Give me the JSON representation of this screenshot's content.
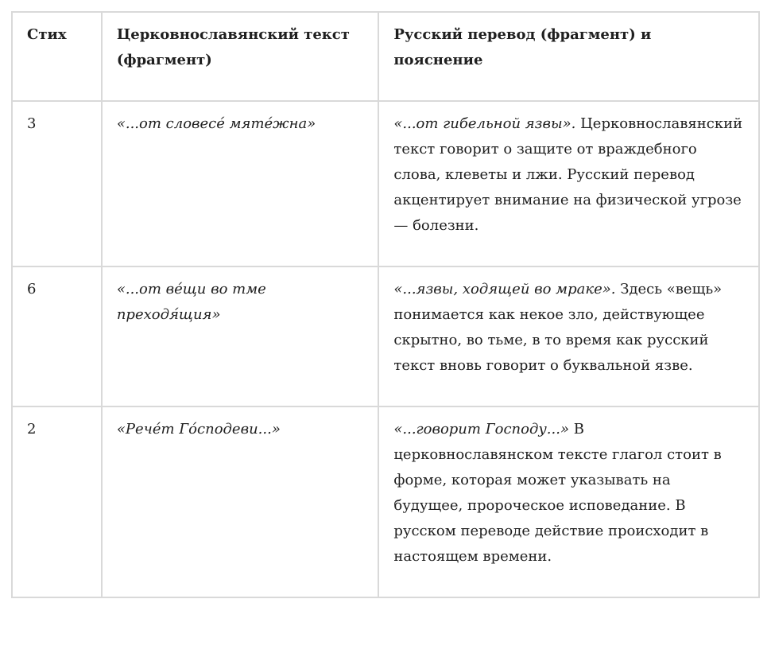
{
  "table": {
    "headers": [
      "Стих",
      "Церковнославянский текст (фрагмент)",
      "Русский перевод (фрагмент) и пояснение"
    ],
    "rows": [
      {
        "verse": "3",
        "slavonic": "«...от словесе́ мяте́жна»",
        "russian_quote": "«...от гибельной язвы».",
        "explanation": "Церковнославянский текст говорит о защите от враждебного слова, клеветы и лжи. Русский перевод акцентирует внимание на физической угрозе — болезни."
      },
      {
        "verse": "6",
        "slavonic": "«...от ве́щи во тме преходя́щия»",
        "russian_quote": "«...язвы, ходящей во мраке».",
        "explanation": "Здесь «вещь» понимается как некое зло, действующее скрытно, во тьме, в то время как русский текст вновь говорит о буквальной язве."
      },
      {
        "verse": "2",
        "slavonic": "«Рече́т Го́сподеви...»",
        "russian_quote": "«...говорит Господу...»",
        "explanation": "В церковнославянском тексте глагол стоит в форме, которая может указывать на будущее, пророческое исповедание. В русском переводе действие происходит в настоящем времени."
      }
    ]
  }
}
